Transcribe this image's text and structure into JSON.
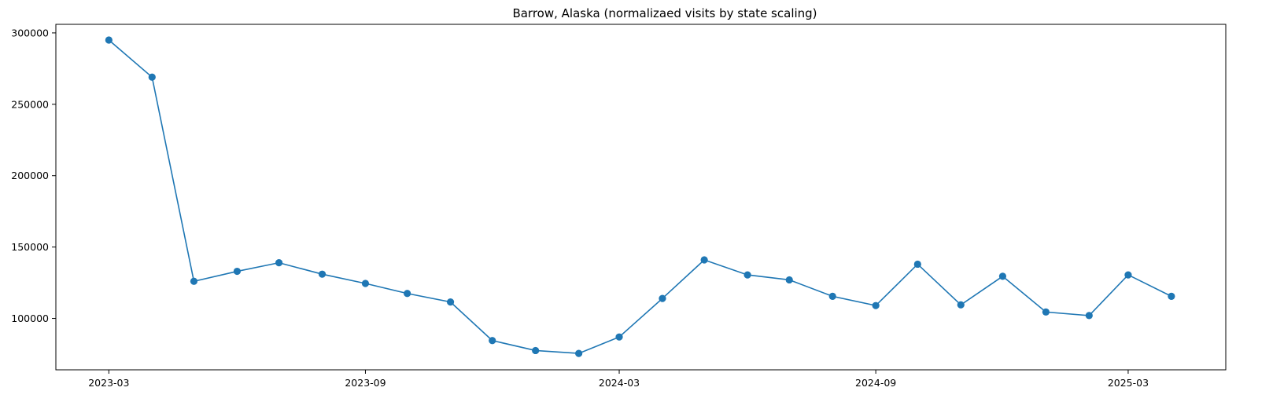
{
  "chart_data": {
    "type": "line",
    "title": "Barrow, Alaska (normalizaed visits by state scaling)",
    "xlabel": "",
    "ylabel": "",
    "grid": false,
    "x": [
      "2023-03-01",
      "2023-04-01",
      "2023-05-01",
      "2023-06-01",
      "2023-07-01",
      "2023-08-01",
      "2023-09-01",
      "2023-10-01",
      "2023-11-01",
      "2023-12-01",
      "2024-01-01",
      "2024-02-01",
      "2024-03-01",
      "2024-04-01",
      "2024-05-01",
      "2024-06-01",
      "2024-07-01",
      "2024-08-01",
      "2024-09-01",
      "2024-10-01",
      "2024-11-01",
      "2024-12-01",
      "2025-01-01",
      "2025-02-01",
      "2025-03-01",
      "2025-04-01"
    ],
    "series": [
      {
        "values": [
          295000,
          269000,
          126000,
          133000,
          139000,
          131000,
          124500,
          117500,
          111500,
          84500,
          77500,
          75500,
          87000,
          114000,
          141000,
          130500,
          127000,
          115500,
          109000,
          138000,
          109500,
          129500,
          104500,
          102000,
          130500,
          115500
        ]
      }
    ],
    "ylim": [
      64000,
      306000
    ],
    "y_ticks": [
      100000,
      150000,
      200000,
      250000,
      300000
    ],
    "y_tick_labels": [
      "100000",
      "150000",
      "200000",
      "250000",
      "300000"
    ],
    "x_tick_dates": [
      "2023-03-01",
      "2023-09-01",
      "2024-03-01",
      "2024-09-01",
      "2025-03-01"
    ],
    "x_tick_labels": [
      "2023-03",
      "2023-09",
      "2024-03",
      "2024-09",
      "2025-03"
    ],
    "x_range": [
      "2023-01-22",
      "2025-05-10"
    ],
    "line_color": "#1f77b4"
  }
}
